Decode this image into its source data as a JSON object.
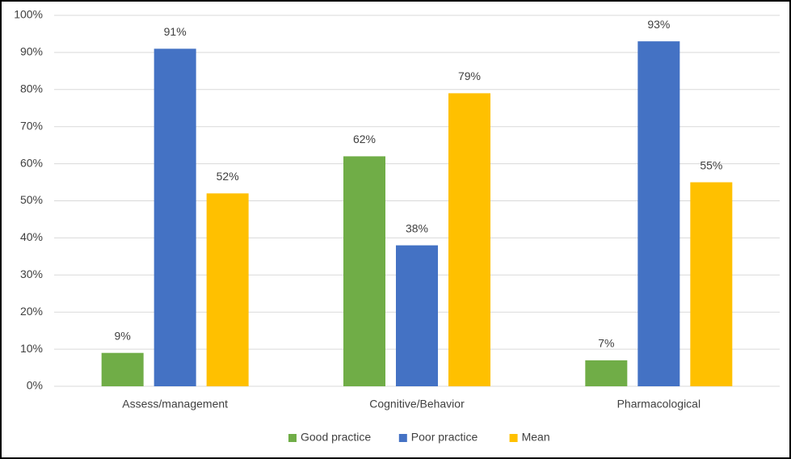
{
  "chart_data": {
    "type": "bar",
    "categories": [
      "Assess/management",
      "Cognitive/Behavior",
      "Pharmacological"
    ],
    "series": [
      {
        "name": "Good practice",
        "color": "#70ad47",
        "values": [
          9,
          62,
          7
        ],
        "value_labels": [
          "9%",
          "62%",
          "7%"
        ]
      },
      {
        "name": "Poor practice",
        "color": "#4472c4",
        "values": [
          91,
          38,
          93
        ],
        "value_labels": [
          "91%",
          "38%",
          "93%"
        ]
      },
      {
        "name": "Mean",
        "color": "#ffc000",
        "values": [
          52,
          79,
          55
        ],
        "value_labels": [
          "52%",
          "79%",
          "55%"
        ]
      }
    ],
    "ylim": [
      0,
      100
    ],
    "yticks": [
      {
        "value": 0,
        "label": "0%"
      },
      {
        "value": 10,
        "label": "10%"
      },
      {
        "value": 20,
        "label": "20%"
      },
      {
        "value": 30,
        "label": "30%"
      },
      {
        "value": 40,
        "label": "40%"
      },
      {
        "value": 50,
        "label": "50%"
      },
      {
        "value": 60,
        "label": "60%"
      },
      {
        "value": 70,
        "label": "70%"
      },
      {
        "value": 80,
        "label": "80%"
      },
      {
        "value": 90,
        "label": "90%"
      },
      {
        "value": 100,
        "label": "100%"
      }
    ],
    "grid": true,
    "legend": "bottom"
  }
}
